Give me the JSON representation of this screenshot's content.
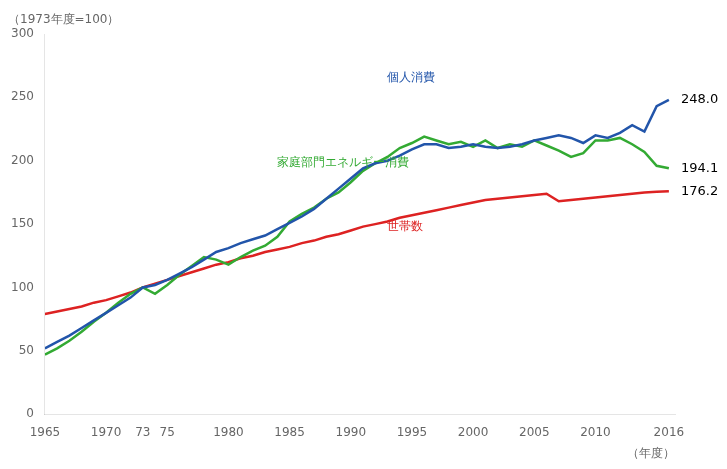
{
  "chart_data": {
    "type": "line",
    "ylabel": "（1973年度=100）",
    "xlabel": "（年度）",
    "xlim": [
      1965,
      2016.5
    ],
    "xticks": [
      1965,
      1970,
      {
        "value": 1973,
        "label": "73"
      },
      {
        "value": 1975,
        "label": "75"
      },
      1980,
      1985,
      1990,
      1995,
      2000,
      2005,
      2010,
      2016
    ],
    "ylim": [
      0,
      300
    ],
    "yticks": [
      0,
      50,
      100,
      150,
      200,
      250,
      300
    ],
    "grid": false,
    "x": [
      1965,
      1966,
      1967,
      1968,
      1969,
      1970,
      1971,
      1972,
      1973,
      1974,
      1975,
      1976,
      1977,
      1978,
      1979,
      1980,
      1981,
      1982,
      1983,
      1984,
      1985,
      1986,
      1987,
      1988,
      1989,
      1990,
      1991,
      1992,
      1993,
      1994,
      1995,
      1996,
      1997,
      1998,
      1999,
      2000,
      2001,
      2002,
      2003,
      2004,
      2005,
      2006,
      2007,
      2008,
      2009,
      2010,
      2011,
      2012,
      2013,
      2014,
      2015,
      2016
    ],
    "series": [
      {
        "color": "#2255AA",
        "values": [
          52,
          57,
          62,
          68,
          74,
          80,
          86,
          92,
          100,
          102,
          106,
          111,
          116,
          122,
          128,
          131,
          135,
          138,
          141,
          146,
          151,
          156,
          162,
          170,
          178,
          186,
          194,
          198,
          200,
          204,
          209,
          213,
          213,
          210,
          211,
          213,
          211,
          210,
          211,
          213,
          216,
          218,
          220,
          218,
          214,
          220,
          218,
          222,
          228,
          223,
          243,
          248
        ]
      },
      {
        "color": "#33AA33",
        "values": [
          47,
          52,
          58,
          65,
          73,
          80,
          88,
          95,
          100,
          95,
          102,
          110,
          117,
          124,
          122,
          118,
          124,
          129,
          133,
          140,
          152,
          158,
          163,
          170,
          175,
          183,
          192,
          198,
          203,
          210,
          214,
          219,
          216,
          213,
          215,
          211,
          216,
          210,
          213,
          211,
          216,
          212,
          208,
          203,
          206,
          216,
          216,
          218,
          213,
          207,
          196,
          194
        ]
      },
      {
        "color": "#DD2222",
        "values": [
          79,
          81,
          83,
          85,
          88,
          90,
          93,
          96,
          100,
          103,
          106,
          109,
          112,
          115,
          118,
          120,
          123,
          125,
          128,
          130,
          132,
          135,
          137,
          140,
          142,
          145,
          148,
          150,
          152,
          155,
          157,
          159,
          161,
          163,
          165,
          167,
          169,
          170,
          171,
          172,
          173,
          174,
          168,
          169,
          170,
          171,
          172,
          173,
          174,
          175,
          175.5,
          176
        ]
      }
    ],
    "annotations": [
      {
        "text": "個人消費",
        "x": 1993,
        "y": 265,
        "color": "#2255AA"
      },
      {
        "text": "家庭部門エネルギー消費",
        "x": 1984,
        "y": 198,
        "color": "#33AA33"
      },
      {
        "text": "世帯数",
        "x": 1993,
        "y": 148,
        "color": "#DD2222"
      },
      {
        "text": "248.0",
        "x": 2016.5,
        "y": 248
      },
      {
        "text": "194.1",
        "x": 2016.5,
        "y": 194
      },
      {
        "text": "176.2",
        "x": 2016.5,
        "y": 176
      }
    ]
  }
}
